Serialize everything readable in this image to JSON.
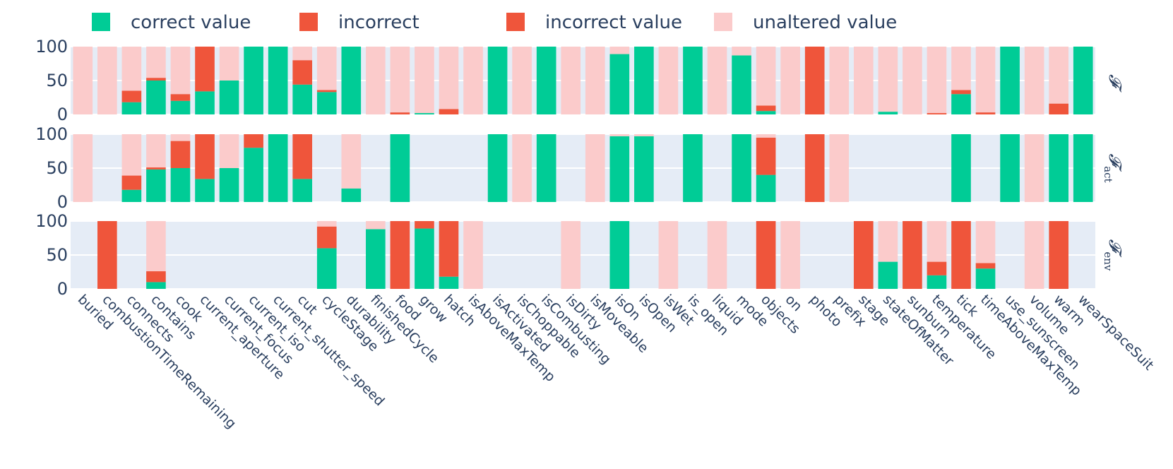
{
  "chart_data": {
    "type": "bar",
    "stacked": true,
    "legend": {
      "placement": "top",
      "items": [
        {
          "key": "correct",
          "label": "correct value",
          "color": "#00cc96"
        },
        {
          "key": "incorrect",
          "label": "incorrect",
          "color": "#ef553b"
        },
        {
          "key": "incorrect_value",
          "label": "incorrect value",
          "color": "#ef553b"
        },
        {
          "key": "unaltered",
          "label": "unaltered value",
          "color": "#fbcbcb"
        }
      ]
    },
    "background_color": "#e5ecf6",
    "ylim": [
      0,
      100
    ],
    "yticks": [
      0,
      50,
      100
    ],
    "categories": [
      "buried",
      "combustionTimeRemaining",
      "connects",
      "contains",
      "cook",
      "current_aperture",
      "current_focus",
      "current_iso",
      "current_shutter_speed",
      "cut",
      "cycleStage",
      "durability",
      "finishedCycle",
      "food",
      "grow",
      "hatch",
      "isAboveMaxTemp",
      "isActivated",
      "isChoppable",
      "isCombusting",
      "isDirty",
      "isMoveable",
      "isOn",
      "isOpen",
      "isWet",
      "is_open",
      "liquid",
      "mode",
      "objects",
      "on",
      "photo",
      "prefix",
      "stage",
      "stateOfMatter",
      "sunburn",
      "temperature",
      "tick",
      "timeAboveMaxTemp",
      "use_sunscreen",
      "volume",
      "warm",
      "wearSpaceSuit"
    ],
    "rows": [
      {
        "label": "𝓕",
        "sub": "",
        "correct": [
          0,
          0,
          18,
          50,
          20,
          34,
          50,
          100,
          100,
          44,
          33,
          100,
          0,
          0,
          2,
          0,
          0,
          100,
          0,
          100,
          0,
          0,
          89,
          100,
          0,
          100,
          0,
          87,
          5,
          0,
          0,
          0,
          0,
          4,
          0,
          0,
          30,
          0,
          100,
          0,
          0,
          100
        ],
        "incorrect": [
          0,
          0,
          17,
          4,
          10,
          66,
          0,
          0,
          0,
          36,
          3,
          0,
          0,
          3,
          0,
          8,
          0,
          0,
          0,
          0,
          0,
          0,
          0,
          0,
          0,
          0,
          0,
          0,
          8,
          0,
          100,
          0,
          0,
          0,
          0,
          2,
          6,
          3,
          0,
          0,
          16,
          0
        ],
        "unaltered": [
          100,
          100,
          65,
          46,
          70,
          0,
          50,
          0,
          0,
          20,
          64,
          0,
          100,
          97,
          98,
          92,
          100,
          0,
          100,
          0,
          100,
          100,
          11,
          0,
          100,
          0,
          100,
          13,
          87,
          100,
          0,
          100,
          100,
          96,
          100,
          98,
          64,
          97,
          0,
          100,
          84,
          0
        ]
      },
      {
        "label": "𝓕",
        "sub": "act",
        "correct": [
          0,
          null,
          18,
          48,
          50,
          34,
          50,
          80,
          100,
          34,
          null,
          20,
          null,
          100,
          null,
          null,
          null,
          100,
          0,
          100,
          null,
          0,
          97,
          97,
          null,
          100,
          null,
          100,
          40,
          null,
          0,
          0,
          null,
          null,
          null,
          null,
          100,
          null,
          100,
          0,
          100,
          100
        ],
        "incorrect": [
          0,
          null,
          21,
          3,
          40,
          66,
          0,
          20,
          0,
          66,
          null,
          0,
          null,
          0,
          null,
          null,
          null,
          0,
          0,
          0,
          null,
          0,
          0,
          0,
          null,
          0,
          null,
          0,
          55,
          null,
          100,
          0,
          null,
          null,
          null,
          null,
          0,
          null,
          0,
          0,
          0,
          0
        ],
        "unaltered": [
          100,
          null,
          61,
          49,
          10,
          0,
          50,
          0,
          0,
          0,
          null,
          80,
          null,
          0,
          null,
          null,
          null,
          0,
          100,
          0,
          null,
          100,
          3,
          3,
          null,
          0,
          null,
          0,
          5,
          null,
          0,
          100,
          null,
          null,
          null,
          null,
          0,
          null,
          0,
          100,
          0,
          0
        ]
      },
      {
        "label": "𝓕",
        "sub": "env",
        "correct": [
          null,
          0,
          null,
          10,
          null,
          null,
          null,
          null,
          null,
          null,
          60,
          null,
          88,
          0,
          89,
          18,
          0,
          null,
          null,
          null,
          0,
          null,
          100,
          null,
          0,
          null,
          0,
          null,
          0,
          0,
          null,
          null,
          0,
          40,
          0,
          20,
          0,
          30,
          null,
          0,
          0,
          null
        ],
        "incorrect": [
          null,
          100,
          null,
          16,
          null,
          null,
          null,
          null,
          null,
          null,
          32,
          null,
          0,
          100,
          11,
          82,
          0,
          null,
          null,
          null,
          0,
          null,
          0,
          null,
          0,
          null,
          0,
          null,
          100,
          0,
          null,
          null,
          100,
          0,
          100,
          20,
          100,
          8,
          null,
          0,
          100,
          null
        ],
        "unaltered": [
          null,
          0,
          null,
          74,
          null,
          null,
          null,
          null,
          null,
          null,
          8,
          null,
          12,
          0,
          0,
          0,
          100,
          null,
          null,
          null,
          100,
          null,
          0,
          null,
          100,
          null,
          100,
          null,
          0,
          100,
          null,
          null,
          0,
          60,
          0,
          60,
          0,
          62,
          null,
          100,
          0,
          null
        ]
      }
    ]
  }
}
